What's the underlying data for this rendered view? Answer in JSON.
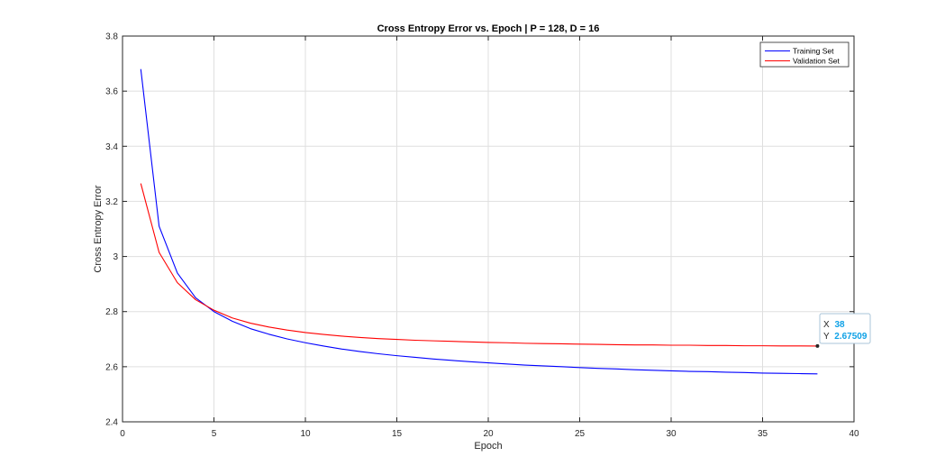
{
  "chart_data": {
    "type": "line",
    "title": "Cross Entropy Error vs. Epoch | P = 128, D = 16",
    "xlabel": "Epoch",
    "ylabel": "Cross Entropy Error",
    "xlim": [
      0,
      40
    ],
    "ylim": [
      2.4,
      3.8
    ],
    "xticks": [
      0,
      5,
      10,
      15,
      20,
      25,
      30,
      35,
      40
    ],
    "yticks": [
      2.4,
      2.6,
      2.8,
      3.0,
      3.2,
      3.4,
      3.6,
      3.8
    ],
    "xtick_labels": [
      "0",
      "5",
      "10",
      "15",
      "20",
      "25",
      "30",
      "35",
      "40"
    ],
    "ytick_labels": [
      "2.4",
      "2.6",
      "2.8",
      "3",
      "3.2",
      "3.4",
      "3.6",
      "3.8"
    ],
    "grid": true,
    "legend_position": "top-right",
    "series": [
      {
        "name": "Training Set",
        "color": "#0000ff",
        "x": [
          1,
          2,
          3,
          4,
          5,
          6,
          7,
          8,
          9,
          10,
          11,
          12,
          13,
          14,
          15,
          16,
          17,
          18,
          19,
          20,
          21,
          22,
          23,
          24,
          25,
          26,
          27,
          28,
          29,
          30,
          31,
          32,
          33,
          34,
          35,
          36,
          37,
          38
        ],
        "y": [
          3.68,
          3.11,
          2.94,
          2.85,
          2.8,
          2.765,
          2.738,
          2.718,
          2.701,
          2.687,
          2.675,
          2.664,
          2.655,
          2.647,
          2.64,
          2.634,
          2.628,
          2.623,
          2.618,
          2.614,
          2.61,
          2.606,
          2.603,
          2.6,
          2.597,
          2.594,
          2.592,
          2.589,
          2.587,
          2.585,
          2.583,
          2.582,
          2.58,
          2.579,
          2.577,
          2.576,
          2.575,
          2.574
        ]
      },
      {
        "name": "Validation Set",
        "color": "#ff0000",
        "x": [
          1,
          2,
          3,
          4,
          5,
          6,
          7,
          8,
          9,
          10,
          11,
          12,
          13,
          14,
          15,
          16,
          17,
          18,
          19,
          20,
          21,
          22,
          23,
          24,
          25,
          26,
          27,
          28,
          29,
          30,
          31,
          32,
          33,
          34,
          35,
          36,
          37,
          38
        ],
        "y": [
          3.265,
          3.015,
          2.905,
          2.843,
          2.805,
          2.777,
          2.758,
          2.744,
          2.733,
          2.724,
          2.717,
          2.711,
          2.706,
          2.702,
          2.699,
          2.696,
          2.694,
          2.692,
          2.69,
          2.688,
          2.687,
          2.685,
          2.684,
          2.683,
          2.682,
          2.681,
          2.68,
          2.679,
          2.679,
          2.678,
          2.678,
          2.677,
          2.677,
          2.676,
          2.676,
          2.6755,
          2.6753,
          2.67509
        ]
      }
    ],
    "datatip": {
      "x_label": "X",
      "x_value": "38",
      "y_label": "Y",
      "y_value": "2.67509",
      "x": 38,
      "y": 2.67509,
      "color": "#0ea1e6"
    }
  }
}
